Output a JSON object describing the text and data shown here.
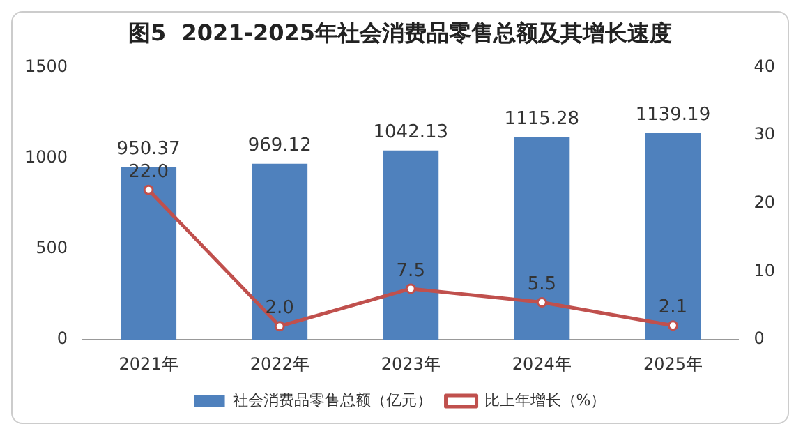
{
  "chart_data": {
    "type": "bar",
    "title": "图5  2021-2025年社会消费品零售总额及其增长速度",
    "categories": [
      "2021年",
      "2022年",
      "2023年",
      "2024年",
      "2025年"
    ],
    "series": [
      {
        "name": "社会消费品零售总额（亿元）",
        "color": "#4f81bd",
        "values": [
          950.37,
          969.12,
          1042.13,
          1115.28,
          1139.19
        ],
        "value_labels": [
          "950.37",
          "969.12",
          "1042.13",
          "1115.28",
          "1139.19"
        ]
      },
      {
        "name": "比上年增长（%）",
        "type": "line",
        "axis": "y2",
        "color": "#c0504d",
        "values": [
          22.0,
          2.0,
          7.5,
          5.5,
          2.1
        ],
        "value_labels": [
          "22.0",
          "2.0",
          "7.5",
          "5.5",
          "2.1"
        ]
      }
    ],
    "ylim": [
      0,
      1500
    ],
    "yticks": [
      0,
      500,
      1000,
      1500
    ],
    "y2lim": [
      0,
      40
    ],
    "y2ticks": [
      0,
      10,
      20,
      30,
      40
    ],
    "grid": false,
    "legend": "bottom",
    "marker": "circle",
    "line_style": "solid"
  }
}
